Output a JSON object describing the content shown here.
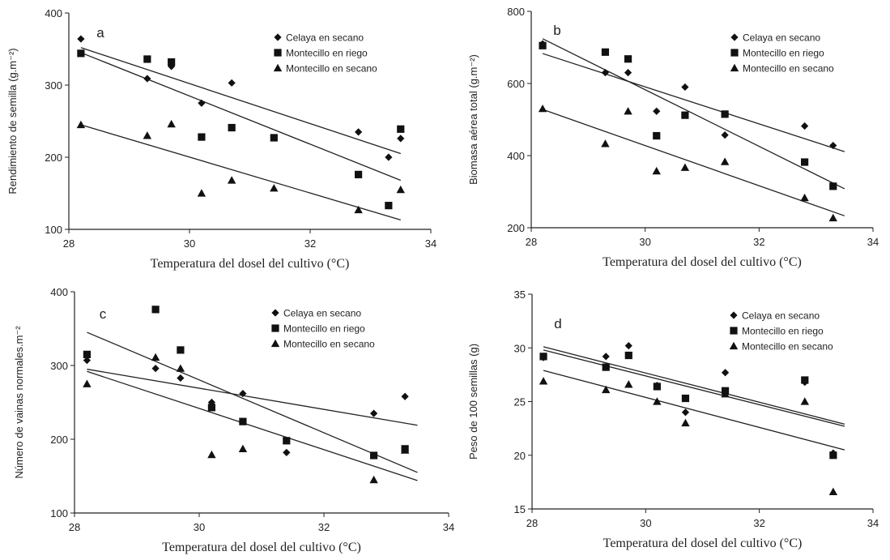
{
  "chart_data": [
    {
      "type": "scatter",
      "panel_label": "a",
      "xlabel": "Temperatura del dosel del cultivo (°C)",
      "ylabel": "Rendimiento de semilla (g.m⁻²)",
      "xlim": [
        28,
        34
      ],
      "ylim": [
        100,
        400
      ],
      "xticks": [
        28,
        30,
        32,
        34
      ],
      "yticks": [
        100,
        200,
        300,
        400
      ],
      "legend_position": "top-right",
      "series": [
        {
          "name": "Celaya en secano",
          "marker": "diamond",
          "x": [
            28.2,
            29.3,
            29.7,
            30.2,
            30.7,
            32.8,
            33.3,
            33.5
          ],
          "y": [
            364,
            309,
            326,
            275,
            303,
            235,
            200,
            226
          ],
          "trend": [
            [
              28.2,
              352
            ],
            [
              33.5,
              205
            ]
          ]
        },
        {
          "name": "Montecillo en riego",
          "marker": "square",
          "x": [
            28.2,
            29.3,
            29.7,
            30.2,
            30.7,
            31.4,
            32.8,
            33.3,
            33.5
          ],
          "y": [
            344,
            336,
            332,
            228,
            241,
            227,
            176,
            133,
            239
          ],
          "trend": [
            [
              28.2,
              345
            ],
            [
              33.5,
              168
            ]
          ]
        },
        {
          "name": "Montecillo en secano",
          "marker": "triangle",
          "x": [
            28.2,
            29.3,
            29.7,
            30.2,
            30.7,
            31.4,
            32.8,
            33.5
          ],
          "y": [
            245,
            230,
            246,
            150,
            168,
            157,
            127,
            155
          ],
          "trend": [
            [
              28.2,
              245
            ],
            [
              33.5,
              113
            ]
          ]
        }
      ]
    },
    {
      "type": "scatter",
      "panel_label": "b",
      "xlabel": "Temperatura del dosel del cultivo (°C)",
      "ylabel": "Biomasa aérea total (g.m⁻²)",
      "xlim": [
        28,
        34
      ],
      "ylim": [
        200,
        800
      ],
      "xticks": [
        28,
        30,
        32,
        34
      ],
      "yticks": [
        200,
        400,
        600,
        800
      ],
      "legend_position": "top-right",
      "series": [
        {
          "name": "Celaya en secano",
          "marker": "diamond",
          "x": [
            28.2,
            29.3,
            29.7,
            30.2,
            30.7,
            31.4,
            32.8,
            33.3
          ],
          "y": [
            710,
            630,
            630,
            523,
            590,
            457,
            482,
            428
          ],
          "trend": [
            [
              28.2,
              683
            ],
            [
              33.5,
              411
            ]
          ]
        },
        {
          "name": "Montecillo en riego",
          "marker": "square",
          "x": [
            28.2,
            29.3,
            29.7,
            30.2,
            30.7,
            31.4,
            32.8,
            33.3
          ],
          "y": [
            705,
            687,
            668,
            455,
            512,
            515,
            382,
            315
          ],
          "trend": [
            [
              28.2,
              724
            ],
            [
              33.5,
              308
            ]
          ]
        },
        {
          "name": "Montecillo en secano",
          "marker": "triangle",
          "x": [
            28.2,
            29.3,
            29.7,
            30.2,
            30.7,
            31.4,
            32.8,
            33.3
          ],
          "y": [
            530,
            433,
            523,
            357,
            367,
            383,
            283,
            227
          ],
          "trend": [
            [
              28.2,
              528
            ],
            [
              33.5,
              233
            ]
          ]
        }
      ]
    },
    {
      "type": "scatter",
      "panel_label": "c",
      "xlabel": "Temperatura del dosel del cultivo (°C)",
      "ylabel": "Número de vainas normales.m⁻²",
      "xlim": [
        28,
        34
      ],
      "ylim": [
        100,
        400
      ],
      "xticks": [
        28,
        30,
        32,
        34
      ],
      "yticks": [
        100,
        200,
        300,
        400
      ],
      "legend_position": "top-right",
      "series": [
        {
          "name": "Celaya en secano",
          "marker": "diamond",
          "x": [
            28.2,
            29.3,
            29.7,
            30.2,
            30.7,
            31.4,
            32.8,
            33.3
          ],
          "y": [
            307,
            296,
            283,
            250,
            262,
            182,
            235,
            258
          ],
          "trend": [
            [
              28.2,
              295
            ],
            [
              33.5,
              219
            ]
          ]
        },
        {
          "name": "Montecillo en riego",
          "marker": "square",
          "x": [
            28.2,
            29.3,
            29.7,
            30.2,
            30.7,
            31.4,
            32.8,
            33.3
          ],
          "y": [
            315,
            376,
            321,
            243,
            224,
            198,
            178,
            187
          ],
          "trend": [
            [
              28.2,
              345
            ],
            [
              33.5,
              155
            ]
          ]
        },
        {
          "name": "Montecillo en secano",
          "marker": "triangle",
          "x": [
            28.2,
            29.3,
            29.7,
            30.2,
            30.7,
            32.8,
            33.3
          ],
          "y": [
            275,
            311,
            296,
            179,
            187,
            145,
            185
          ],
          "trend": [
            [
              28.2,
              292
            ],
            [
              33.5,
              144
            ]
          ]
        }
      ]
    },
    {
      "type": "scatter",
      "panel_label": "d",
      "xlabel": "Temperatura del dosel del cultivo (°C)",
      "ylabel": "Peso de 100 semillas (g)",
      "xlim": [
        28,
        34
      ],
      "ylim": [
        15,
        35
      ],
      "xticks": [
        28,
        30,
        32,
        34
      ],
      "yticks": [
        15,
        20,
        25,
        30,
        35
      ],
      "legend_position": "top-right",
      "series": [
        {
          "name": "Celaya en secano",
          "marker": "diamond",
          "x": [
            28.2,
            29.3,
            29.7,
            30.2,
            30.7,
            31.4,
            32.8,
            33.3
          ],
          "y": [
            29.1,
            29.2,
            30.2,
            26.5,
            24.0,
            27.7,
            26.8,
            20.2
          ],
          "trend": [
            [
              28.2,
              30.1
            ],
            [
              33.5,
              22.9
            ]
          ]
        },
        {
          "name": "Montecillo en riego",
          "marker": "square",
          "x": [
            28.2,
            29.3,
            29.7,
            30.2,
            30.7,
            31.4,
            32.8,
            33.3
          ],
          "y": [
            29.2,
            28.2,
            29.3,
            26.4,
            25.3,
            26.0,
            27.0,
            20.0
          ],
          "trend": [
            [
              28.2,
              29.8
            ],
            [
              33.5,
              22.7
            ]
          ]
        },
        {
          "name": "Montecillo en secano",
          "marker": "triangle",
          "x": [
            28.2,
            29.3,
            29.7,
            30.2,
            30.7,
            31.4,
            32.8,
            33.3
          ],
          "y": [
            26.9,
            26.1,
            26.6,
            25.0,
            23.0,
            25.7,
            25.0,
            16.6
          ],
          "trend": [
            [
              28.2,
              27.9
            ],
            [
              33.5,
              20.5
            ]
          ]
        }
      ]
    }
  ]
}
